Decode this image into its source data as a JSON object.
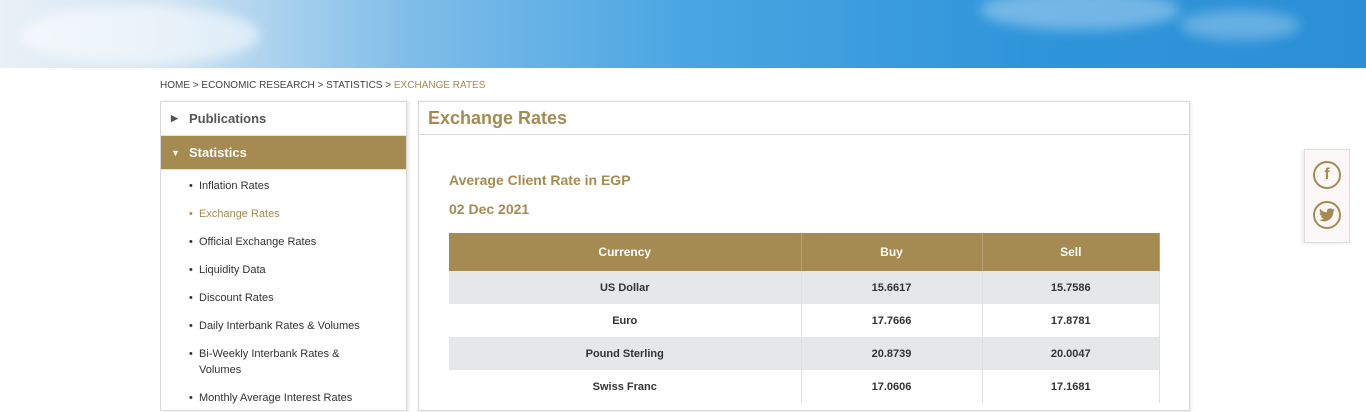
{
  "breadcrumb": {
    "items": [
      "HOME",
      "ECONOMIC RESEARCH",
      "STATISTICS"
    ],
    "current": "EXCHANGE RATES"
  },
  "sidebar": {
    "sections": [
      {
        "label": "Publications"
      },
      {
        "label": "Statistics"
      }
    ],
    "items": [
      "Inflation Rates",
      "Exchange Rates",
      "Official Exchange Rates",
      "Liquidity Data",
      "Discount Rates",
      "Daily Interbank Rates & Volumes",
      "Bi-Weekly Interbank Rates & Volumes",
      "Monthly Average Interest Rates"
    ]
  },
  "main": {
    "title": "Exchange Rates",
    "subtitle": "Average Client Rate in EGP",
    "date": "02 Dec 2021",
    "table": {
      "headers": [
        "Currency",
        "Buy",
        "Sell"
      ],
      "rows": [
        [
          "US Dollar",
          "15.6617",
          "15.7586"
        ],
        [
          "Euro",
          "17.7666",
          "17.8781"
        ],
        [
          "Pound Sterling",
          "20.8739",
          "20.0047"
        ],
        [
          "Swiss Franc",
          "17.0606",
          "17.1681"
        ]
      ]
    }
  },
  "social": {
    "icons": [
      "facebook-icon",
      "twitter-icon"
    ]
  },
  "colors": {
    "accent": "#a58b51",
    "row_alt": "#e6e7e9"
  }
}
